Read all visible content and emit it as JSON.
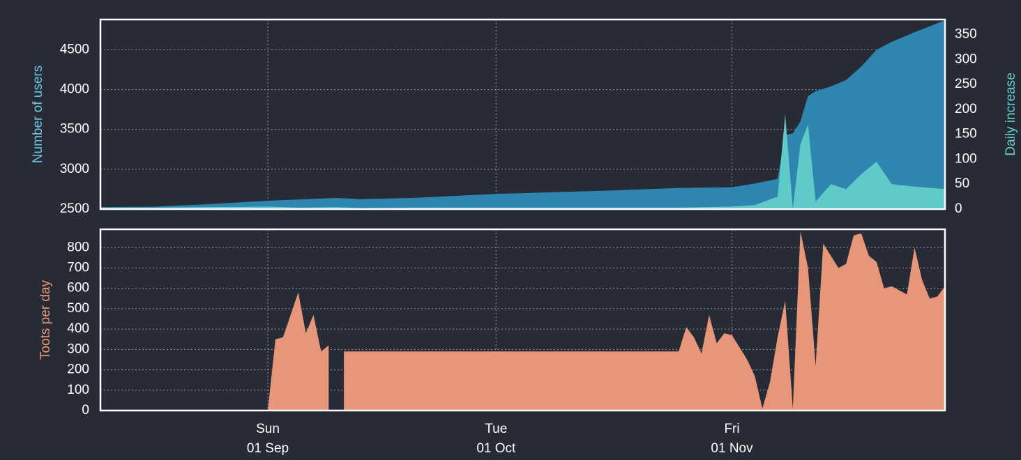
{
  "chart_data": [
    {
      "type": "area",
      "x": [
        "10 Aug",
        "17 Aug",
        "24 Aug",
        "01 Sep",
        "05 Sep",
        "10 Sep",
        "13 Sep",
        "20 Sep",
        "01 Oct",
        "15 Oct",
        "25 Oct",
        "01 Nov",
        "04 Nov",
        "07 Nov",
        "08 Nov",
        "09 Nov",
        "10 Nov",
        "11 Nov",
        "12 Nov",
        "14 Nov",
        "16 Nov",
        "18 Nov",
        "20 Nov",
        "22 Nov",
        "25 Nov",
        "29 Nov"
      ],
      "series": [
        {
          "color": "#2e86b0",
          "axis": "y",
          "values": [
            2525,
            2530,
            2560,
            2605,
            2620,
            2640,
            2625,
            2640,
            2690,
            2730,
            2765,
            2775,
            2820,
            2880,
            3430,
            3450,
            3600,
            3920,
            3980,
            4040,
            4120,
            4290,
            4500,
            4600,
            4720,
            4870
          ]
        },
        {
          "color": "#63cdc9",
          "axis": "y2",
          "values": [
            3,
            3,
            4,
            5,
            3,
            4,
            2,
            3,
            3,
            3,
            3,
            5,
            8,
            25,
            190,
            0,
            130,
            170,
            15,
            50,
            40,
            70,
            95,
            50,
            45,
            40
          ]
        }
      ],
      "ylabel": "Number of users",
      "ylim": [
        2500,
        4880
      ],
      "yticks": [
        2500,
        3000,
        3500,
        4000,
        4500
      ],
      "y2label": "Daily increase",
      "y2lim": [
        0,
        380
      ],
      "y2ticks": [
        0,
        50,
        100,
        150,
        200,
        250,
        300,
        350
      ],
      "grid": true
    },
    {
      "type": "area",
      "x": [
        "10 Aug",
        "31 Aug",
        "01 Sep",
        "02 Sep",
        "03 Sep",
        "05 Sep",
        "06 Sep",
        "07 Sep",
        "08 Sep",
        "09 Sep",
        "10 Sep",
        "11 Sep",
        "25 Oct",
        "26 Oct",
        "27 Oct",
        "28 Oct",
        "29 Oct",
        "30 Oct",
        "31 Oct",
        "01 Nov",
        "03 Nov",
        "04 Nov",
        "05 Nov",
        "06 Nov",
        "07 Nov",
        "08 Nov",
        "09 Nov",
        "10 Nov",
        "11 Nov",
        "12 Nov",
        "13 Nov",
        "14 Nov",
        "15 Nov",
        "16 Nov",
        "17 Nov",
        "18 Nov",
        "19 Nov",
        "20 Nov",
        "21 Nov",
        "22 Nov",
        "23 Nov",
        "24 Nov",
        "25 Nov",
        "26 Nov",
        "27 Nov",
        "28 Nov",
        "29 Nov"
      ],
      "series": [
        {
          "color": "#e8967a",
          "values": [
            0,
            0,
            0,
            350,
            360,
            580,
            380,
            470,
            290,
            320,
            null,
            290,
            290,
            410,
            360,
            280,
            470,
            330,
            380,
            370,
            250,
            170,
            10,
            140,
            360,
            540,
            10,
            880,
            700,
            220,
            820,
            760,
            700,
            720,
            860,
            870,
            760,
            730,
            600,
            610,
            590,
            570,
            800,
            640,
            550,
            560,
            610
          ]
        }
      ],
      "ylabel": "Toots per day",
      "ylim": [
        0,
        890
      ],
      "yticks": [
        0,
        100,
        200,
        300,
        400,
        500,
        600,
        700,
        800
      ],
      "xlim": [
        "10 Aug",
        "29 Nov"
      ],
      "xticks": [
        {
          "value": "01 Sep",
          "label": [
            "Sun",
            "01 Sep"
          ]
        },
        {
          "value": "01 Oct",
          "label": [
            "Tue",
            "01 Oct"
          ]
        },
        {
          "value": "01 Nov",
          "label": [
            "Fri",
            "01 Nov"
          ]
        }
      ],
      "grid": true
    }
  ]
}
